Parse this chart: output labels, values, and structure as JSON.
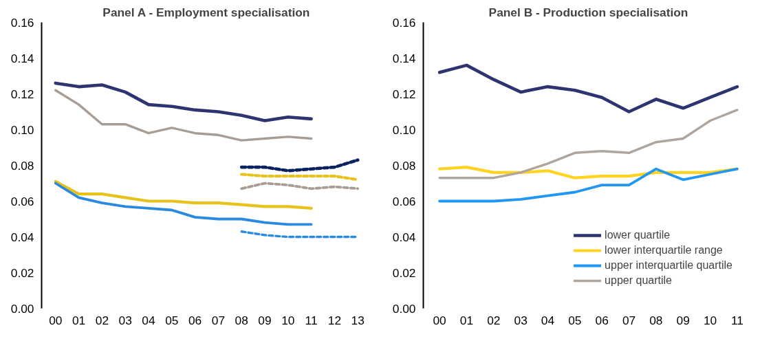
{
  "chart_data": [
    {
      "type": "line",
      "title": "Panel A - Employment specialisation",
      "categories": [
        "00",
        "01",
        "02",
        "03",
        "04",
        "05",
        "06",
        "07",
        "08",
        "09",
        "10",
        "11",
        "12",
        "13"
      ],
      "ylim": [
        0,
        0.16
      ],
      "yticks": [
        {
          "value": 0,
          "label": "0.00"
        },
        {
          "value": 0.02,
          "label": "0.02"
        },
        {
          "value": 0.04,
          "label": "0.04"
        },
        {
          "value": 0.06,
          "label": "0.06"
        },
        {
          "value": 0.08,
          "label": "0.08"
        },
        {
          "value": 0.1,
          "label": "0.10"
        },
        {
          "value": 0.12,
          "label": "0.12"
        },
        {
          "value": 0.14,
          "label": "0.14"
        },
        {
          "value": 0.16,
          "label": "0.16"
        }
      ],
      "grid": false,
      "legend": false,
      "series": [
        {
          "color": "#2e3470",
          "line_style": "solid",
          "values": [
            0.126,
            0.124,
            0.125,
            0.121,
            0.114,
            0.113,
            0.111,
            0.11,
            0.108,
            0.105,
            0.107,
            0.106,
            null,
            null
          ]
        },
        {
          "color": "#e6c21a",
          "line_style": "solid",
          "values": [
            0.071,
            0.064,
            0.064,
            0.062,
            0.06,
            0.06,
            0.059,
            0.059,
            0.058,
            0.057,
            0.057,
            0.056,
            null,
            null
          ]
        },
        {
          "color": "#2a8ae0",
          "line_style": "solid",
          "values": [
            0.07,
            0.062,
            0.059,
            0.057,
            0.056,
            0.055,
            0.051,
            0.05,
            0.05,
            0.048,
            0.047,
            0.047,
            null,
            null
          ]
        },
        {
          "color": "#a89c94",
          "line_style": "solid",
          "values": [
            0.122,
            0.114,
            0.103,
            0.103,
            0.098,
            0.101,
            0.098,
            0.097,
            0.094,
            0.095,
            0.096,
            0.095,
            null,
            null
          ]
        },
        {
          "color": "#0b2260",
          "line_style": "dashed",
          "values": [
            null,
            null,
            null,
            null,
            null,
            null,
            null,
            null,
            0.079,
            0.079,
            0.077,
            0.078,
            0.079,
            0.083
          ]
        },
        {
          "color": "#e6c21a",
          "line_style": "dashed",
          "values": [
            null,
            null,
            null,
            null,
            null,
            null,
            null,
            null,
            0.075,
            0.074,
            0.074,
            0.074,
            0.074,
            0.072
          ]
        },
        {
          "color": "#a89c94",
          "line_style": "dashed",
          "values": [
            null,
            null,
            null,
            null,
            null,
            null,
            null,
            null,
            0.067,
            0.07,
            0.069,
            0.067,
            0.068,
            0.067
          ]
        },
        {
          "color": "#2a8ae0",
          "line_style": "dashed",
          "values": [
            null,
            null,
            null,
            null,
            null,
            null,
            null,
            null,
            0.043,
            0.041,
            0.04,
            0.04,
            0.04,
            0.04
          ]
        }
      ]
    },
    {
      "type": "line",
      "title": "Panel B - Production specialisation",
      "categories": [
        "00",
        "01",
        "02",
        "03",
        "04",
        "05",
        "06",
        "07",
        "08",
        "09",
        "10",
        "11"
      ],
      "ylim": [
        0,
        0.16
      ],
      "yticks": [
        {
          "value": 0,
          "label": "0.00"
        },
        {
          "value": 0.02,
          "label": "0.02"
        },
        {
          "value": 0.04,
          "label": "0.04"
        },
        {
          "value": 0.06,
          "label": "0.06"
        },
        {
          "value": 0.08,
          "label": "0.08"
        },
        {
          "value": 0.1,
          "label": "0.10"
        },
        {
          "value": 0.12,
          "label": "0.12"
        },
        {
          "value": 0.14,
          "label": "0.14"
        },
        {
          "value": 0.16,
          "label": "0.16"
        }
      ],
      "grid": false,
      "legend": "bottom right",
      "series": [
        {
          "name": "lower quartile",
          "color": "#2e3470",
          "line_style": "solid",
          "values": [
            0.132,
            0.136,
            0.128,
            0.121,
            0.124,
            0.122,
            0.118,
            0.11,
            0.117,
            0.112,
            0.118,
            0.124
          ]
        },
        {
          "name": "lower interquartile range",
          "color": "#ffd320",
          "line_style": "solid",
          "values": [
            0.078,
            0.079,
            0.076,
            0.076,
            0.077,
            0.073,
            0.074,
            0.074,
            0.076,
            0.076,
            0.076,
            0.078
          ]
        },
        {
          "name": "upper interquartile quartile",
          "color": "#2196f3",
          "line_style": "solid",
          "values": [
            0.06,
            0.06,
            0.06,
            0.061,
            0.063,
            0.065,
            0.069,
            0.069,
            0.078,
            0.072,
            0.075,
            0.078
          ]
        },
        {
          "name": "upper quartile",
          "color": "#b0a59d",
          "line_style": "solid",
          "values": [
            0.073,
            0.073,
            0.073,
            0.076,
            0.081,
            0.087,
            0.088,
            0.087,
            0.093,
            0.095,
            0.105,
            0.111
          ]
        }
      ]
    }
  ]
}
